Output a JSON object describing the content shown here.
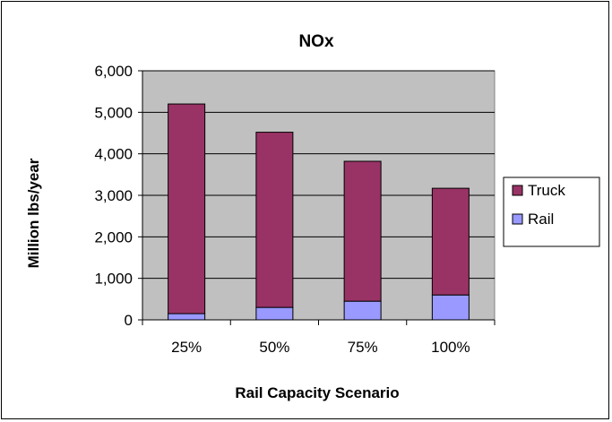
{
  "chart_data": {
    "type": "bar",
    "stacked": true,
    "title": "NOx",
    "xlabel": "Rail Capacity Scenario",
    "ylabel": "Million lbs/year",
    "categories": [
      "25%",
      "50%",
      "75%",
      "100%"
    ],
    "ylim": [
      0,
      6000
    ],
    "yticks": [
      "0",
      "1,000",
      "2,000",
      "3,000",
      "4,000",
      "5,000",
      "6,000"
    ],
    "ytick_values": [
      0,
      1000,
      2000,
      3000,
      4000,
      5000,
      6000
    ],
    "grid": true,
    "legend_position": "right",
    "series": [
      {
        "name": "Rail",
        "values": [
          150,
          300,
          450,
          600
        ],
        "color": "#9999ff"
      },
      {
        "name": "Truck",
        "values": [
          5050,
          4220,
          3370,
          2570
        ],
        "color": "#993366"
      }
    ],
    "legend_order": [
      "Truck",
      "Rail"
    ],
    "plot_background": "#c0c0c0"
  }
}
